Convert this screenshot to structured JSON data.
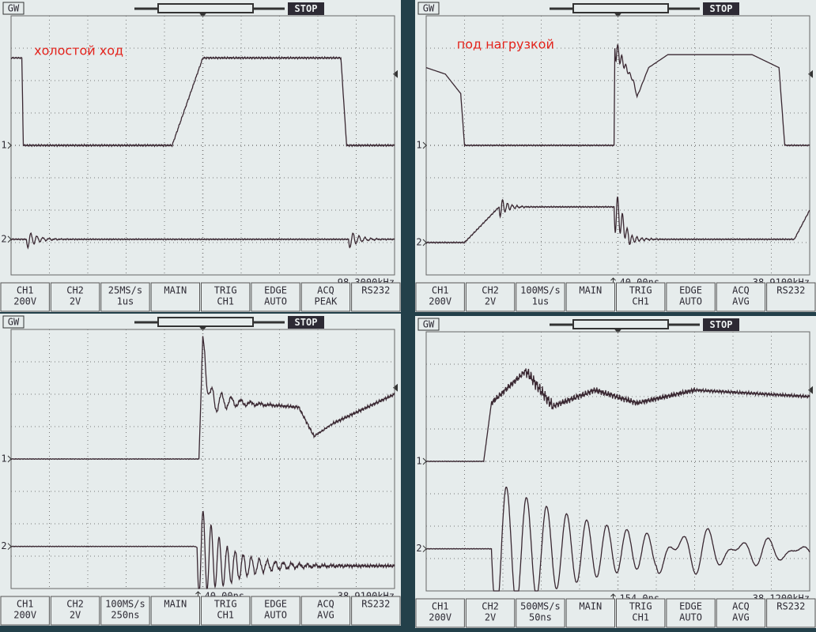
{
  "panels": [
    {
      "brand": "GW",
      "state": "STOP",
      "annotation": "холостой ход",
      "channel_markers": [
        "1",
        "2"
      ],
      "frequency": "98.3000kHz",
      "status": [
        {
          "lines": [
            "CH1",
            "200V"
          ]
        },
        {
          "lines": [
            "CH2",
            "2V"
          ]
        },
        {
          "lines": [
            "25MS/s",
            "1us"
          ]
        },
        {
          "lines": [
            "MAIN"
          ]
        },
        {
          "lines": [
            "TRIG",
            "CH1"
          ]
        },
        {
          "lines": [
            "EDGE",
            "AUTO"
          ]
        },
        {
          "lines": [
            "ACQ",
            "PEAK"
          ]
        },
        {
          "lines": [
            "RS232"
          ]
        }
      ]
    },
    {
      "brand": "GW",
      "state": "STOP",
      "annotation": "под нагрузкой",
      "channel_markers": [
        "1",
        "2"
      ],
      "trigger_time": "40.00ns",
      "frequency": "38.9100kHz",
      "status": [
        {
          "lines": [
            "CH1",
            "200V"
          ]
        },
        {
          "lines": [
            "CH2",
            "2V"
          ]
        },
        {
          "lines": [
            "100MS/s",
            "1us"
          ]
        },
        {
          "lines": [
            "MAIN"
          ]
        },
        {
          "lines": [
            "TRIG",
            "CH1"
          ]
        },
        {
          "lines": [
            "EDGE",
            "AUTO"
          ]
        },
        {
          "lines": [
            "ACQ",
            "AVG"
          ]
        },
        {
          "lines": [
            "RS232"
          ]
        }
      ]
    },
    {
      "brand": "GW",
      "state": "STOP",
      "channel_markers": [
        "1",
        "2"
      ],
      "trigger_time": "40.00ns",
      "frequency": "38.9100kHz",
      "status": [
        {
          "lines": [
            "CH1",
            "200V"
          ]
        },
        {
          "lines": [
            "CH2",
            "2V"
          ]
        },
        {
          "lines": [
            "100MS/s",
            "250ns"
          ]
        },
        {
          "lines": [
            "MAIN"
          ]
        },
        {
          "lines": [
            "TRIG",
            "CH1"
          ]
        },
        {
          "lines": [
            "EDGE",
            "AUTO"
          ]
        },
        {
          "lines": [
            "ACQ",
            "AVG"
          ]
        },
        {
          "lines": [
            "RS232"
          ]
        }
      ]
    },
    {
      "brand": "GW",
      "state": "STOP",
      "channel_markers": [
        "1",
        "2"
      ],
      "trigger_time": "154.0ns",
      "frequency": "38.1200kHz",
      "status": [
        {
          "lines": [
            "CH1",
            "200V"
          ]
        },
        {
          "lines": [
            "CH2",
            "2V"
          ]
        },
        {
          "lines": [
            "500MS/s",
            "50ns"
          ]
        },
        {
          "lines": [
            "MAIN"
          ]
        },
        {
          "lines": [
            "TRIG",
            "CH1"
          ]
        },
        {
          "lines": [
            "EDGE",
            "AUTO"
          ]
        },
        {
          "lines": [
            "ACQ",
            "AVG"
          ]
        },
        {
          "lines": [
            "RS232"
          ]
        }
      ]
    }
  ]
}
